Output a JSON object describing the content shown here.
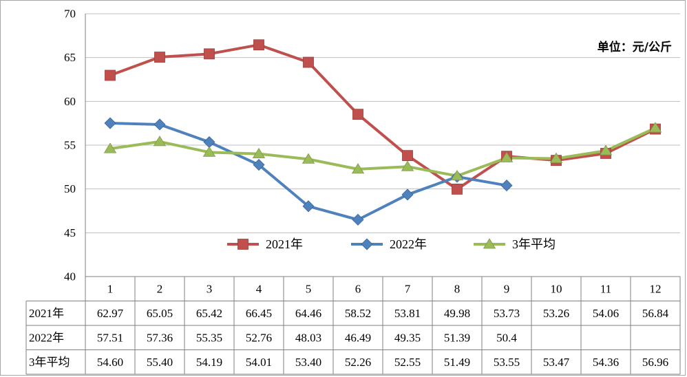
{
  "unit_label": "单位：元/公斤",
  "colors": {
    "2021": "#c0504d",
    "2022": "#4f81bd",
    "avg": "#9bbb59",
    "grid": "#bfbfbf",
    "border": "#7f7f7f"
  },
  "chart_data": {
    "type": "line",
    "categories": [
      "1",
      "2",
      "3",
      "4",
      "5",
      "6",
      "7",
      "8",
      "9",
      "10",
      "11",
      "12"
    ],
    "ylim": [
      40,
      70
    ],
    "yticks": [
      40,
      45,
      50,
      55,
      60,
      65,
      70
    ],
    "grid": true,
    "legend_position": "center",
    "series": [
      {
        "name": "2021年",
        "marker": "square",
        "values": [
          62.97,
          65.05,
          65.42,
          66.45,
          64.46,
          58.52,
          53.81,
          49.98,
          53.73,
          53.26,
          54.06,
          56.84
        ],
        "labels": [
          "62.97",
          "65.05",
          "65.42",
          "66.45",
          "64.46",
          "58.52",
          "53.81",
          "49.98",
          "53.73",
          "53.26",
          "54.06",
          "56.84"
        ]
      },
      {
        "name": "2022年",
        "marker": "diamond",
        "values": [
          57.51,
          57.36,
          55.35,
          52.76,
          48.03,
          46.49,
          49.35,
          51.39,
          50.4,
          null,
          null,
          null
        ],
        "labels": [
          "57.51",
          "57.36",
          "55.35",
          "52.76",
          "48.03",
          "46.49",
          "49.35",
          "51.39",
          "50.4",
          "",
          "",
          ""
        ]
      },
      {
        "name": "3年平均",
        "marker": "triangle",
        "values": [
          54.6,
          55.4,
          54.19,
          54.01,
          53.4,
          52.26,
          52.55,
          51.49,
          53.55,
          53.47,
          54.36,
          56.96
        ],
        "labels": [
          "54.60",
          "55.40",
          "54.19",
          "54.01",
          "53.40",
          "52.26",
          "52.55",
          "51.49",
          "53.55",
          "53.47",
          "54.36",
          "56.96"
        ]
      }
    ]
  }
}
